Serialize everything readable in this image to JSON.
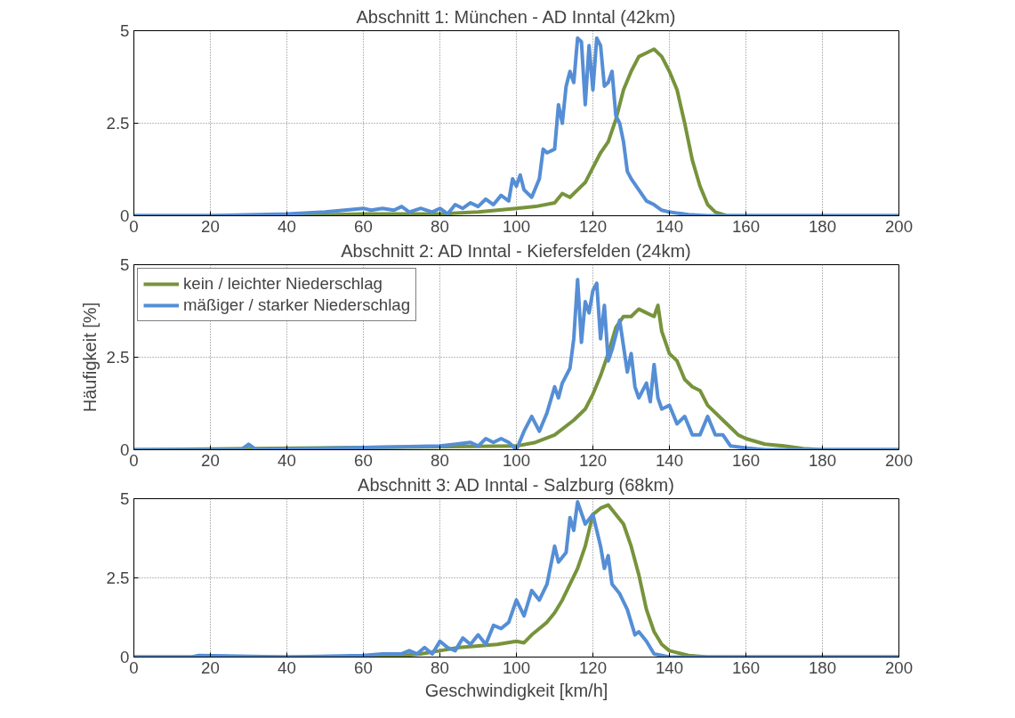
{
  "chart_data": [
    {
      "type": "line",
      "title": "Abschnitt 1: München - AD Inntal (42km)",
      "xlim": [
        0,
        200
      ],
      "ylim": [
        0,
        5
      ],
      "xticks": [
        0,
        20,
        40,
        60,
        80,
        100,
        120,
        140,
        160,
        180,
        200
      ],
      "yticks": [
        0,
        2.5,
        5
      ],
      "grid": true,
      "legend": false,
      "series": [
        {
          "color": "#77933c",
          "x": [
            0,
            20,
            40,
            60,
            80,
            90,
            100,
            105,
            110,
            112,
            114,
            116,
            118,
            120,
            122,
            124,
            126,
            128,
            130,
            132,
            134,
            136,
            138,
            140,
            142,
            144,
            146,
            148,
            150,
            152,
            155,
            200
          ],
          "values": [
            0,
            0,
            0,
            0.05,
            0.05,
            0.1,
            0.2,
            0.25,
            0.35,
            0.6,
            0.5,
            0.7,
            0.9,
            1.3,
            1.7,
            2.0,
            2.6,
            3.4,
            3.9,
            4.3,
            4.4,
            4.5,
            4.3,
            3.9,
            3.4,
            2.5,
            1.5,
            0.8,
            0.3,
            0.1,
            0,
            0
          ]
        },
        {
          "color": "#558ed5",
          "x": [
            0,
            20,
            40,
            50,
            55,
            60,
            62,
            65,
            68,
            70,
            72,
            75,
            78,
            80,
            82,
            84,
            86,
            88,
            90,
            92,
            94,
            96,
            98,
            99,
            100,
            101,
            102,
            104,
            106,
            107,
            108,
            110,
            111,
            112,
            113,
            114,
            115,
            116,
            117,
            118,
            119,
            120,
            121,
            122,
            123,
            124,
            125,
            126,
            127,
            128,
            129,
            130,
            132,
            134,
            136,
            138,
            140,
            145,
            150,
            200
          ],
          "values": [
            0,
            0,
            0.05,
            0.1,
            0.15,
            0.2,
            0.15,
            0.2,
            0.15,
            0.25,
            0.1,
            0.2,
            0.1,
            0.2,
            0.05,
            0.3,
            0.2,
            0.35,
            0.25,
            0.45,
            0.3,
            0.55,
            0.4,
            1.0,
            0.8,
            1.1,
            0.7,
            0.5,
            1.0,
            1.8,
            1.7,
            1.8,
            3.0,
            2.5,
            3.5,
            3.9,
            3.6,
            4.8,
            4.7,
            3.0,
            4.6,
            3.4,
            4.8,
            4.6,
            3.5,
            3.6,
            3.9,
            2.7,
            2.5,
            2.0,
            1.2,
            1.0,
            0.7,
            0.4,
            0.3,
            0.15,
            0.1,
            0.03,
            0,
            0
          ]
        }
      ]
    },
    {
      "type": "line",
      "title": "Abschnitt 2: AD Inntal - Kiefersfelden (24km)",
      "ylabel": "Häufigkeit [%]",
      "xlim": [
        0,
        200
      ],
      "ylim": [
        0,
        5
      ],
      "xticks": [
        0,
        20,
        40,
        60,
        80,
        100,
        120,
        140,
        160,
        180,
        200
      ],
      "yticks": [
        0,
        2.5,
        5
      ],
      "grid": true,
      "legend": "top left",
      "series": [
        {
          "name": "kein / leichter Niederschlag",
          "color": "#77933c",
          "x": [
            0,
            100,
            105,
            110,
            115,
            118,
            120,
            122,
            124,
            126,
            128,
            130,
            132,
            134,
            136,
            137,
            138,
            140,
            142,
            144,
            146,
            148,
            150,
            152,
            154,
            156,
            158,
            160,
            165,
            170,
            175,
            180,
            200
          ],
          "values": [
            0,
            0.1,
            0.2,
            0.4,
            0.8,
            1.1,
            1.5,
            2.0,
            2.6,
            3.3,
            3.6,
            3.6,
            3.8,
            3.7,
            3.6,
            3.9,
            3.2,
            2.6,
            2.4,
            1.9,
            1.7,
            1.6,
            1.2,
            1.0,
            0.8,
            0.6,
            0.4,
            0.3,
            0.15,
            0.1,
            0.03,
            0,
            0
          ]
        },
        {
          "name": "mäßiger / starker Niederschlag",
          "color": "#558ed5",
          "x": [
            0,
            28,
            30,
            32,
            80,
            88,
            90,
            92,
            94,
            96,
            98,
            100,
            102,
            104,
            106,
            108,
            110,
            111,
            112,
            114,
            115,
            116,
            117,
            118,
            119,
            120,
            121,
            122,
            123,
            124,
            125,
            127,
            128,
            129,
            130,
            131,
            132,
            134,
            135,
            136,
            137,
            138,
            140,
            142,
            144,
            146,
            148,
            150,
            152,
            154,
            156,
            160,
            165,
            200
          ],
          "values": [
            0,
            0,
            0.15,
            0,
            0.1,
            0.2,
            0.1,
            0.3,
            0.2,
            0.3,
            0.2,
            0,
            0.5,
            0.9,
            0.5,
            1.0,
            1.7,
            1.4,
            1.8,
            2.2,
            3.0,
            4.6,
            2.9,
            4.0,
            3.7,
            4.3,
            4.5,
            3.0,
            3.9,
            2.4,
            2.7,
            3.5,
            2.8,
            2.1,
            2.6,
            1.7,
            1.4,
            1.8,
            1.3,
            2.3,
            1.4,
            1.1,
            1.2,
            0.7,
            0.9,
            0.4,
            0.4,
            0.9,
            0.4,
            0.4,
            0.1,
            0.05,
            0,
            0
          ]
        }
      ]
    },
    {
      "type": "line",
      "title": "Abschnitt 3: AD Inntal - Salzburg (68km)",
      "xlabel": "Geschwindigkeit [km/h]",
      "xlim": [
        0,
        200
      ],
      "ylim": [
        0,
        5
      ],
      "xticks": [
        0,
        20,
        40,
        60,
        80,
        100,
        120,
        140,
        160,
        180,
        200
      ],
      "yticks": [
        0,
        2.5,
        5
      ],
      "grid": true,
      "legend": false,
      "series": [
        {
          "color": "#77933c",
          "x": [
            0,
            50,
            70,
            75,
            80,
            85,
            90,
            95,
            100,
            102,
            104,
            106,
            108,
            110,
            112,
            114,
            116,
            118,
            119,
            120,
            122,
            124,
            126,
            128,
            130,
            132,
            134,
            136,
            138,
            140,
            145,
            150,
            200
          ],
          "values": [
            0,
            0,
            0.05,
            0.1,
            0.2,
            0.3,
            0.35,
            0.4,
            0.5,
            0.45,
            0.7,
            0.9,
            1.1,
            1.4,
            1.8,
            2.3,
            2.8,
            3.5,
            4.0,
            4.5,
            4.7,
            4.8,
            4.5,
            4.2,
            3.5,
            2.6,
            1.5,
            0.8,
            0.4,
            0.2,
            0.05,
            0,
            0
          ]
        },
        {
          "color": "#558ed5",
          "x": [
            0,
            15,
            17,
            40,
            60,
            65,
            70,
            72,
            74,
            76,
            78,
            80,
            82,
            84,
            86,
            88,
            90,
            92,
            94,
            96,
            98,
            100,
            102,
            104,
            106,
            108,
            110,
            111,
            113,
            114,
            115,
            116,
            118,
            120,
            122,
            123,
            124,
            125,
            127,
            129,
            131,
            132,
            134,
            136,
            140,
            200
          ],
          "values": [
            0,
            0,
            0.05,
            0,
            0.05,
            0.1,
            0.1,
            0.2,
            0.1,
            0.3,
            0.1,
            0.5,
            0.3,
            0.2,
            0.6,
            0.4,
            0.7,
            0.4,
            1.0,
            0.9,
            1.1,
            1.8,
            1.3,
            2.1,
            1.8,
            2.3,
            3.5,
            3.0,
            3.3,
            4.4,
            4.0,
            4.9,
            4.2,
            4.5,
            3.5,
            2.8,
            3.2,
            2.3,
            2.0,
            1.5,
            0.7,
            0.8,
            0.5,
            0.1,
            0,
            0
          ]
        }
      ]
    }
  ]
}
